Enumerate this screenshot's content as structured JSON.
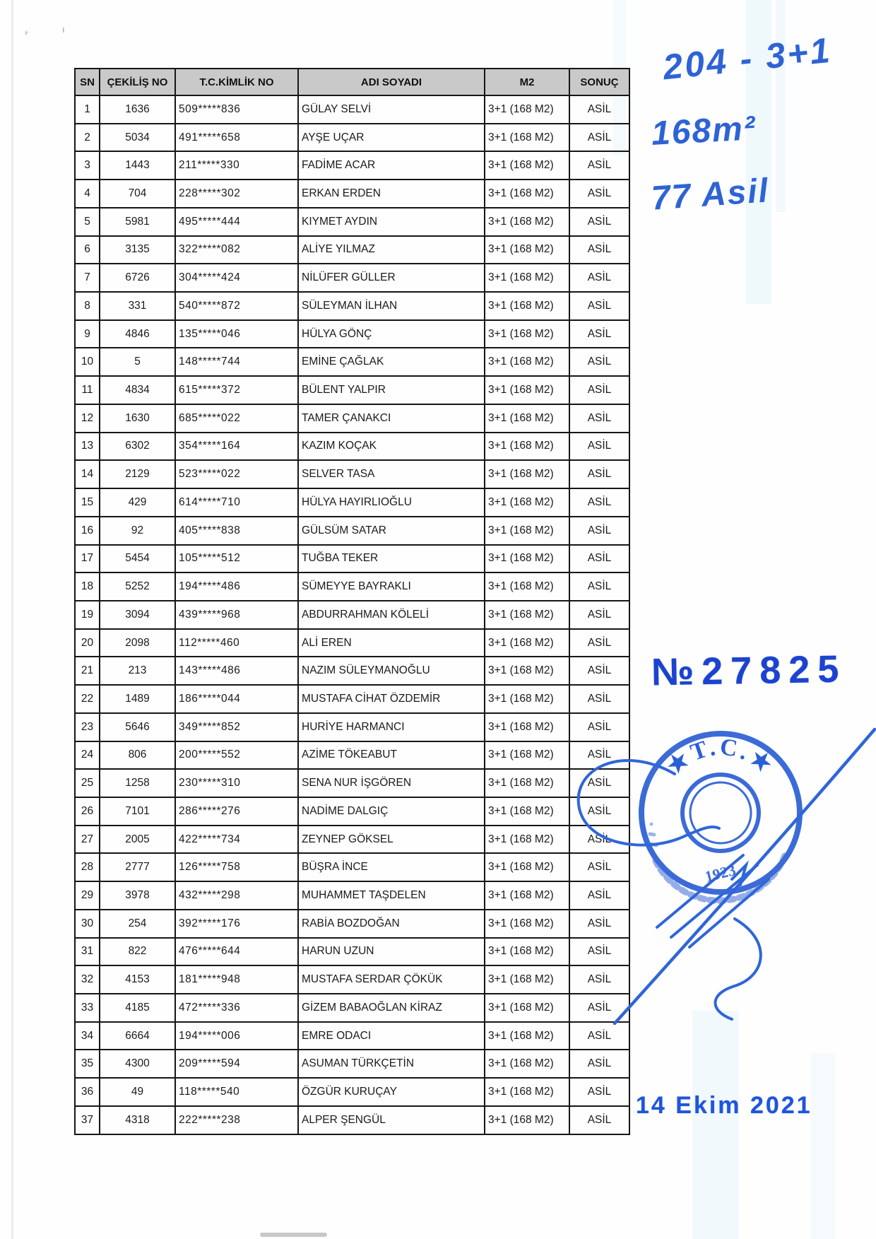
{
  "table": {
    "headers": [
      "SN",
      "ÇEKİLİŞ NO",
      "T.C.KİMLİK NO",
      "ADI SOYADI",
      "M2",
      "SONUÇ"
    ],
    "rows": [
      [
        "1",
        "1636",
        "509*****836",
        "GÜLAY SELVİ",
        "3+1 (168 M2)",
        "ASİL"
      ],
      [
        "2",
        "5034",
        "491*****658",
        "AYŞE UÇAR",
        "3+1 (168 M2)",
        "ASİL"
      ],
      [
        "3",
        "1443",
        "211*****330",
        "FADİME ACAR",
        "3+1 (168 M2)",
        "ASİL"
      ],
      [
        "4",
        "704",
        "228*****302",
        "ERKAN ERDEN",
        "3+1 (168 M2)",
        "ASİL"
      ],
      [
        "5",
        "5981",
        "495*****444",
        "KIYMET AYDIN",
        "3+1 (168 M2)",
        "ASİL"
      ],
      [
        "6",
        "3135",
        "322*****082",
        "ALİYE YILMAZ",
        "3+1 (168 M2)",
        "ASİL"
      ],
      [
        "7",
        "6726",
        "304*****424",
        "NİLÜFER GÜLLER",
        "3+1 (168 M2)",
        "ASİL"
      ],
      [
        "8",
        "331",
        "540*****872",
        "SÜLEYMAN İLHAN",
        "3+1 (168 M2)",
        "ASİL"
      ],
      [
        "9",
        "4846",
        "135*****046",
        "HÜLYA GÖNÇ",
        "3+1 (168 M2)",
        "ASİL"
      ],
      [
        "10",
        "5",
        "148*****744",
        "EMİNE ÇAĞLAK",
        "3+1 (168 M2)",
        "ASİL"
      ],
      [
        "11",
        "4834",
        "615*****372",
        "BÜLENT YALPIR",
        "3+1 (168 M2)",
        "ASİL"
      ],
      [
        "12",
        "1630",
        "685*****022",
        "TAMER ÇANAKCI",
        "3+1 (168 M2)",
        "ASİL"
      ],
      [
        "13",
        "6302",
        "354*****164",
        "KAZIM KOÇAK",
        "3+1 (168 M2)",
        "ASİL"
      ],
      [
        "14",
        "2129",
        "523*****022",
        "SELVER TASA",
        "3+1 (168 M2)",
        "ASİL"
      ],
      [
        "15",
        "429",
        "614*****710",
        "HÜLYA HAYIRLIOĞLU",
        "3+1 (168 M2)",
        "ASİL"
      ],
      [
        "16",
        "92",
        "405*****838",
        "GÜLSÜM SATAR",
        "3+1 (168 M2)",
        "ASİL"
      ],
      [
        "17",
        "5454",
        "105*****512",
        "TUĞBA TEKER",
        "3+1 (168 M2)",
        "ASİL"
      ],
      [
        "18",
        "5252",
        "194*****486",
        "SÜMEYYE BAYRAKLI",
        "3+1 (168 M2)",
        "ASİL"
      ],
      [
        "19",
        "3094",
        "439*****968",
        "ABDURRAHMAN KÖLELİ",
        "3+1 (168 M2)",
        "ASİL"
      ],
      [
        "20",
        "2098",
        "112*****460",
        "ALİ EREN",
        "3+1 (168 M2)",
        "ASİL"
      ],
      [
        "21",
        "213",
        "143*****486",
        "NAZIM SÜLEYMANOĞLU",
        "3+1 (168 M2)",
        "ASİL"
      ],
      [
        "22",
        "1489",
        "186*****044",
        "MUSTAFA CİHAT ÖZDEMİR",
        "3+1 (168 M2)",
        "ASİL"
      ],
      [
        "23",
        "5646",
        "349*****852",
        "HURİYE HARMANCI",
        "3+1 (168 M2)",
        "ASİL"
      ],
      [
        "24",
        "806",
        "200*****552",
        "AZİME TÖKEABUT",
        "3+1 (168 M2)",
        "ASİL"
      ],
      [
        "25",
        "1258",
        "230*****310",
        "SENA NUR İŞGÖREN",
        "3+1 (168 M2)",
        "ASİL"
      ],
      [
        "26",
        "7101",
        "286*****276",
        "NADİME DALGIÇ",
        "3+1 (168 M2)",
        "ASİL"
      ],
      [
        "27",
        "2005",
        "422*****734",
        "ZEYNEP GÖKSEL",
        "3+1 (168 M2)",
        "ASİL"
      ],
      [
        "28",
        "2777",
        "126*****758",
        "BÜŞRA İNCE",
        "3+1 (168 M2)",
        "ASİL"
      ],
      [
        "29",
        "3978",
        "432*****298",
        "MUHAMMET TAŞDELEN",
        "3+1 (168 M2)",
        "ASİL"
      ],
      [
        "30",
        "254",
        "392*****176",
        "RABİA BOZDOĞAN",
        "3+1 (168 M2)",
        "ASİL"
      ],
      [
        "31",
        "822",
        "476*****644",
        "HARUN UZUN",
        "3+1 (168 M2)",
        "ASİL"
      ],
      [
        "32",
        "4153",
        "181*****948",
        "MUSTAFA SERDAR ÇÖKÜK",
        "3+1 (168 M2)",
        "ASİL"
      ],
      [
        "33",
        "4185",
        "472*****336",
        "GİZEM BABAOĞLAN KİRAZ",
        "3+1 (168 M2)",
        "ASİL"
      ],
      [
        "34",
        "6664",
        "194*****006",
        "EMRE ODACI",
        "3+1 (168 M2)",
        "ASİL"
      ],
      [
        "35",
        "4300",
        "209*****594",
        "ASUMAN TÜRKÇETİN",
        "3+1 (168 M2)",
        "ASİL"
      ],
      [
        "36",
        "49",
        "118*****540",
        "ÖZGÜR KURUÇAY",
        "3+1 (168 M2)",
        "ASİL"
      ],
      [
        "37",
        "4318",
        "222*****238",
        "ALPER ŞENGÜL",
        "3+1 (168 M2)",
        "ASİL"
      ]
    ]
  },
  "annotations": {
    "handwritten": [
      "204 - 3+1",
      "168m²",
      "77 Asil"
    ],
    "number_stamp": "№27825",
    "seal": {
      "text": "★T.C.★",
      "year": "1923"
    },
    "date_stamp": "14 Ekim 2021"
  },
  "colors": {
    "ink_blue": "#2e63d6",
    "stamp_blue": "#1c43cf",
    "seal_blue": "#2b5fd4",
    "header_gray": "#c9c9c9",
    "border_black": "#161616"
  }
}
